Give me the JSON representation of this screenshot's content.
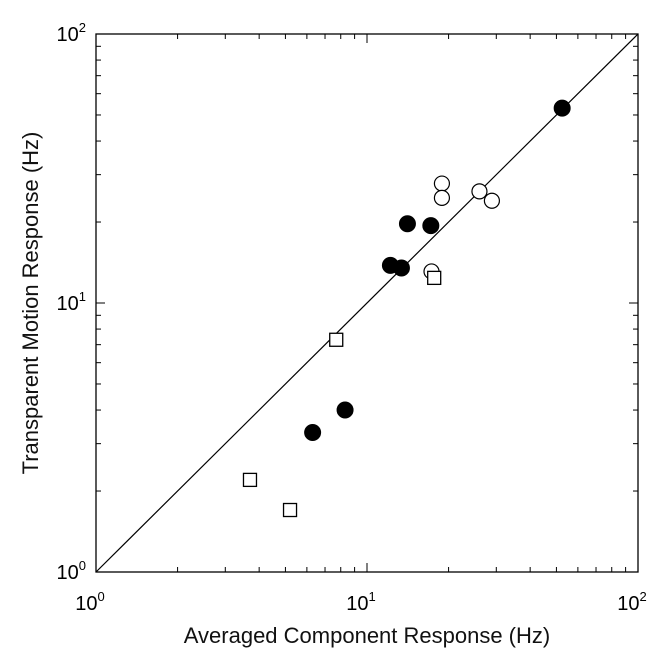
{
  "chart_data": {
    "type": "scatter",
    "title": "",
    "xlabel": "Averaged Component Response (Hz)",
    "ylabel": "Transparent Motion Response (Hz)",
    "xscale": "log",
    "yscale": "log",
    "xlim": [
      1,
      100
    ],
    "ylim": [
      1,
      100
    ],
    "x_ticks": [
      {
        "base": "10",
        "exp": "0",
        "value": 1
      },
      {
        "base": "10",
        "exp": "1",
        "value": 10
      },
      {
        "base": "10",
        "exp": "2",
        "value": 100
      }
    ],
    "y_ticks": [
      {
        "base": "10",
        "exp": "0",
        "value": 1
      },
      {
        "base": "10",
        "exp": "1",
        "value": 10
      },
      {
        "base": "10",
        "exp": "2",
        "value": 100
      }
    ],
    "grid": false,
    "reference_line": {
      "type": "identity",
      "from": [
        1,
        1
      ],
      "to": [
        100,
        100
      ]
    },
    "series": [
      {
        "marker": "filled-circle",
        "color": "#000000",
        "points": [
          {
            "x": 6.3,
            "y": 3.3
          },
          {
            "x": 8.3,
            "y": 4.0
          },
          {
            "x": 12.2,
            "y": 13.8
          },
          {
            "x": 13.4,
            "y": 13.5
          },
          {
            "x": 14.1,
            "y": 19.7
          },
          {
            "x": 17.2,
            "y": 19.4
          },
          {
            "x": 52.5,
            "y": 53.0
          }
        ]
      },
      {
        "marker": "open-circle",
        "color": "#000000",
        "points": [
          {
            "x": 17.3,
            "y": 13.1
          },
          {
            "x": 18.9,
            "y": 27.8
          },
          {
            "x": 18.9,
            "y": 24.6
          },
          {
            "x": 26.0,
            "y": 26.0
          },
          {
            "x": 28.9,
            "y": 24.0
          }
        ]
      },
      {
        "marker": "open-square",
        "color": "#000000",
        "points": [
          {
            "x": 3.7,
            "y": 2.2
          },
          {
            "x": 5.2,
            "y": 1.7
          },
          {
            "x": 7.7,
            "y": 7.3
          },
          {
            "x": 17.7,
            "y": 12.4
          }
        ]
      }
    ]
  }
}
